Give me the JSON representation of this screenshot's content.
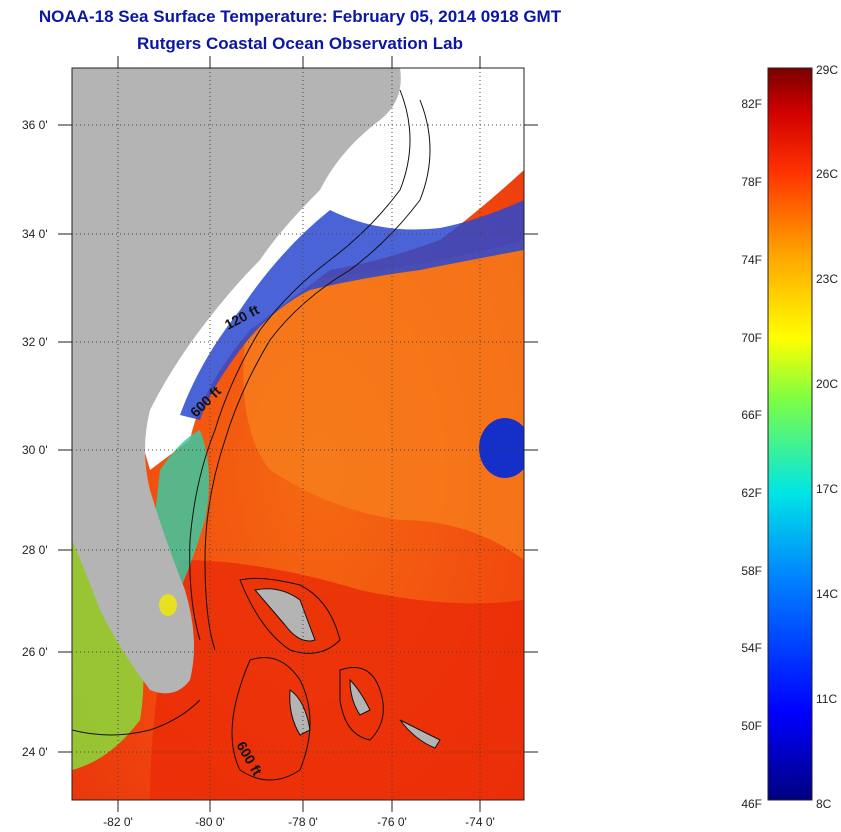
{
  "title": "NOAA-18 Sea Surface Temperature:  February 05, 2014 0918 GMT",
  "subtitle": "Rutgers Coastal Ocean Observation Lab",
  "map": {
    "lat_labels": [
      "36 0'",
      "34 0'",
      "32 0'",
      "30 0'",
      "28 0'",
      "26 0'",
      "24 0'"
    ],
    "lon_labels": [
      "-82 0'",
      "-80 0'",
      "-78 0'",
      "-76 0'",
      "-74 0'"
    ],
    "contour_labels": [
      "120 ft",
      "600 ft",
      "600 ft"
    ],
    "colors": {
      "land": "#b4b4b4",
      "cloud": "#ffffff",
      "warm": "#f04a10",
      "cool": "#1a3fd6"
    }
  },
  "colorbar": {
    "fahrenheit_labels": [
      "82F",
      "78F",
      "74F",
      "70F",
      "66F",
      "62F",
      "58F",
      "54F",
      "50F",
      "46F"
    ],
    "celsius_labels": [
      "29C",
      "26C",
      "23C",
      "20C",
      "17C",
      "14C",
      "11C",
      "8C"
    ]
  }
}
